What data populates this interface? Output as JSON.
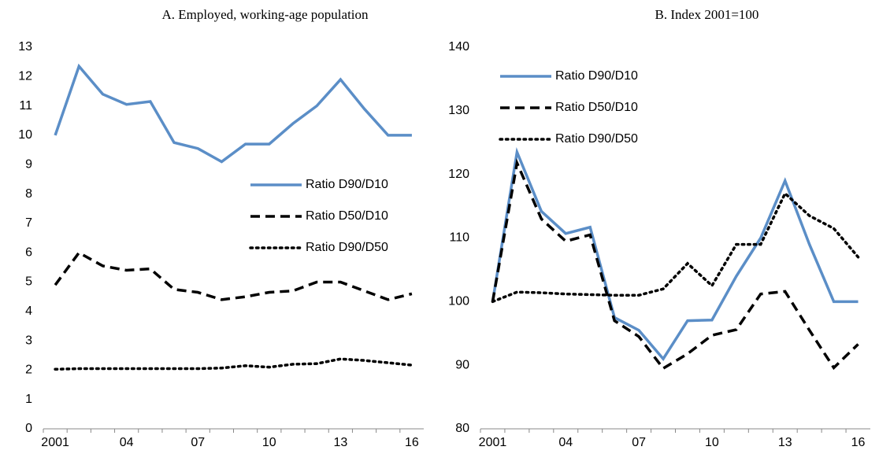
{
  "chart_data": [
    {
      "type": "line",
      "title": "A. Employed, working-age population",
      "categories": [
        "2001",
        null,
        null,
        "04",
        null,
        null,
        "07",
        null,
        null,
        "10",
        null,
        null,
        "13",
        null,
        null,
        "16"
      ],
      "series": [
        {
          "name": "Ratio D90/D10",
          "color": "#5b8ec7",
          "style": "solid",
          "values": [
            10.0,
            12.35,
            11.4,
            11.05,
            11.15,
            9.75,
            9.55,
            9.1,
            9.7,
            9.7,
            10.4,
            11.0,
            11.9,
            10.9,
            10.0,
            10.0
          ]
        },
        {
          "name": "Ratio D50/D10",
          "color": "#000000",
          "style": "dashed",
          "values": [
            4.9,
            6.0,
            5.55,
            5.4,
            5.45,
            4.75,
            4.65,
            4.4,
            4.5,
            4.65,
            4.7,
            5.0,
            5.0,
            4.7,
            4.4,
            4.6
          ]
        },
        {
          "name": "Ratio D90/D50",
          "color": "#000000",
          "style": "dotted",
          "values": [
            2.03,
            2.05,
            2.05,
            2.05,
            2.05,
            2.05,
            2.05,
            2.07,
            2.15,
            2.1,
            2.2,
            2.22,
            2.38,
            2.33,
            2.25,
            2.17
          ]
        }
      ],
      "ylim": [
        0,
        13
      ],
      "yticks": [
        0,
        1,
        2,
        3,
        4,
        5,
        6,
        7,
        8,
        9,
        10,
        11,
        12,
        13
      ],
      "legend": "center right"
    },
    {
      "type": "line",
      "title": "B. Index 2001=100",
      "categories": [
        "2001",
        null,
        null,
        "04",
        null,
        null,
        "07",
        null,
        null,
        "10",
        null,
        null,
        "13",
        null,
        null,
        "16"
      ],
      "series": [
        {
          "name": "Ratio D90/D10",
          "color": "#5b8ec7",
          "style": "solid",
          "values": [
            100,
            123.5,
            114.2,
            110.7,
            111.7,
            97.5,
            95.5,
            91,
            97,
            97.1,
            104,
            110,
            119,
            109,
            100,
            100
          ]
        },
        {
          "name": "Ratio D50/D10",
          "color": "#000000",
          "style": "dashed",
          "values": [
            100,
            121.8,
            113,
            109.5,
            110.5,
            97,
            94.5,
            89.5,
            91.8,
            94.7,
            95.6,
            101.2,
            101.6,
            95.5,
            89.6,
            93.3
          ]
        },
        {
          "name": "Ratio D90/D50",
          "color": "#000000",
          "style": "dotted",
          "values": [
            100,
            101.5,
            101.4,
            101.2,
            101.1,
            101,
            101,
            102,
            106,
            102.5,
            109,
            109,
            117,
            113.5,
            111.5,
            107
          ]
        }
      ],
      "ylim": [
        80,
        140
      ],
      "yticks": [
        80,
        90,
        100,
        110,
        120,
        130,
        140
      ],
      "legend": "upper left"
    }
  ]
}
